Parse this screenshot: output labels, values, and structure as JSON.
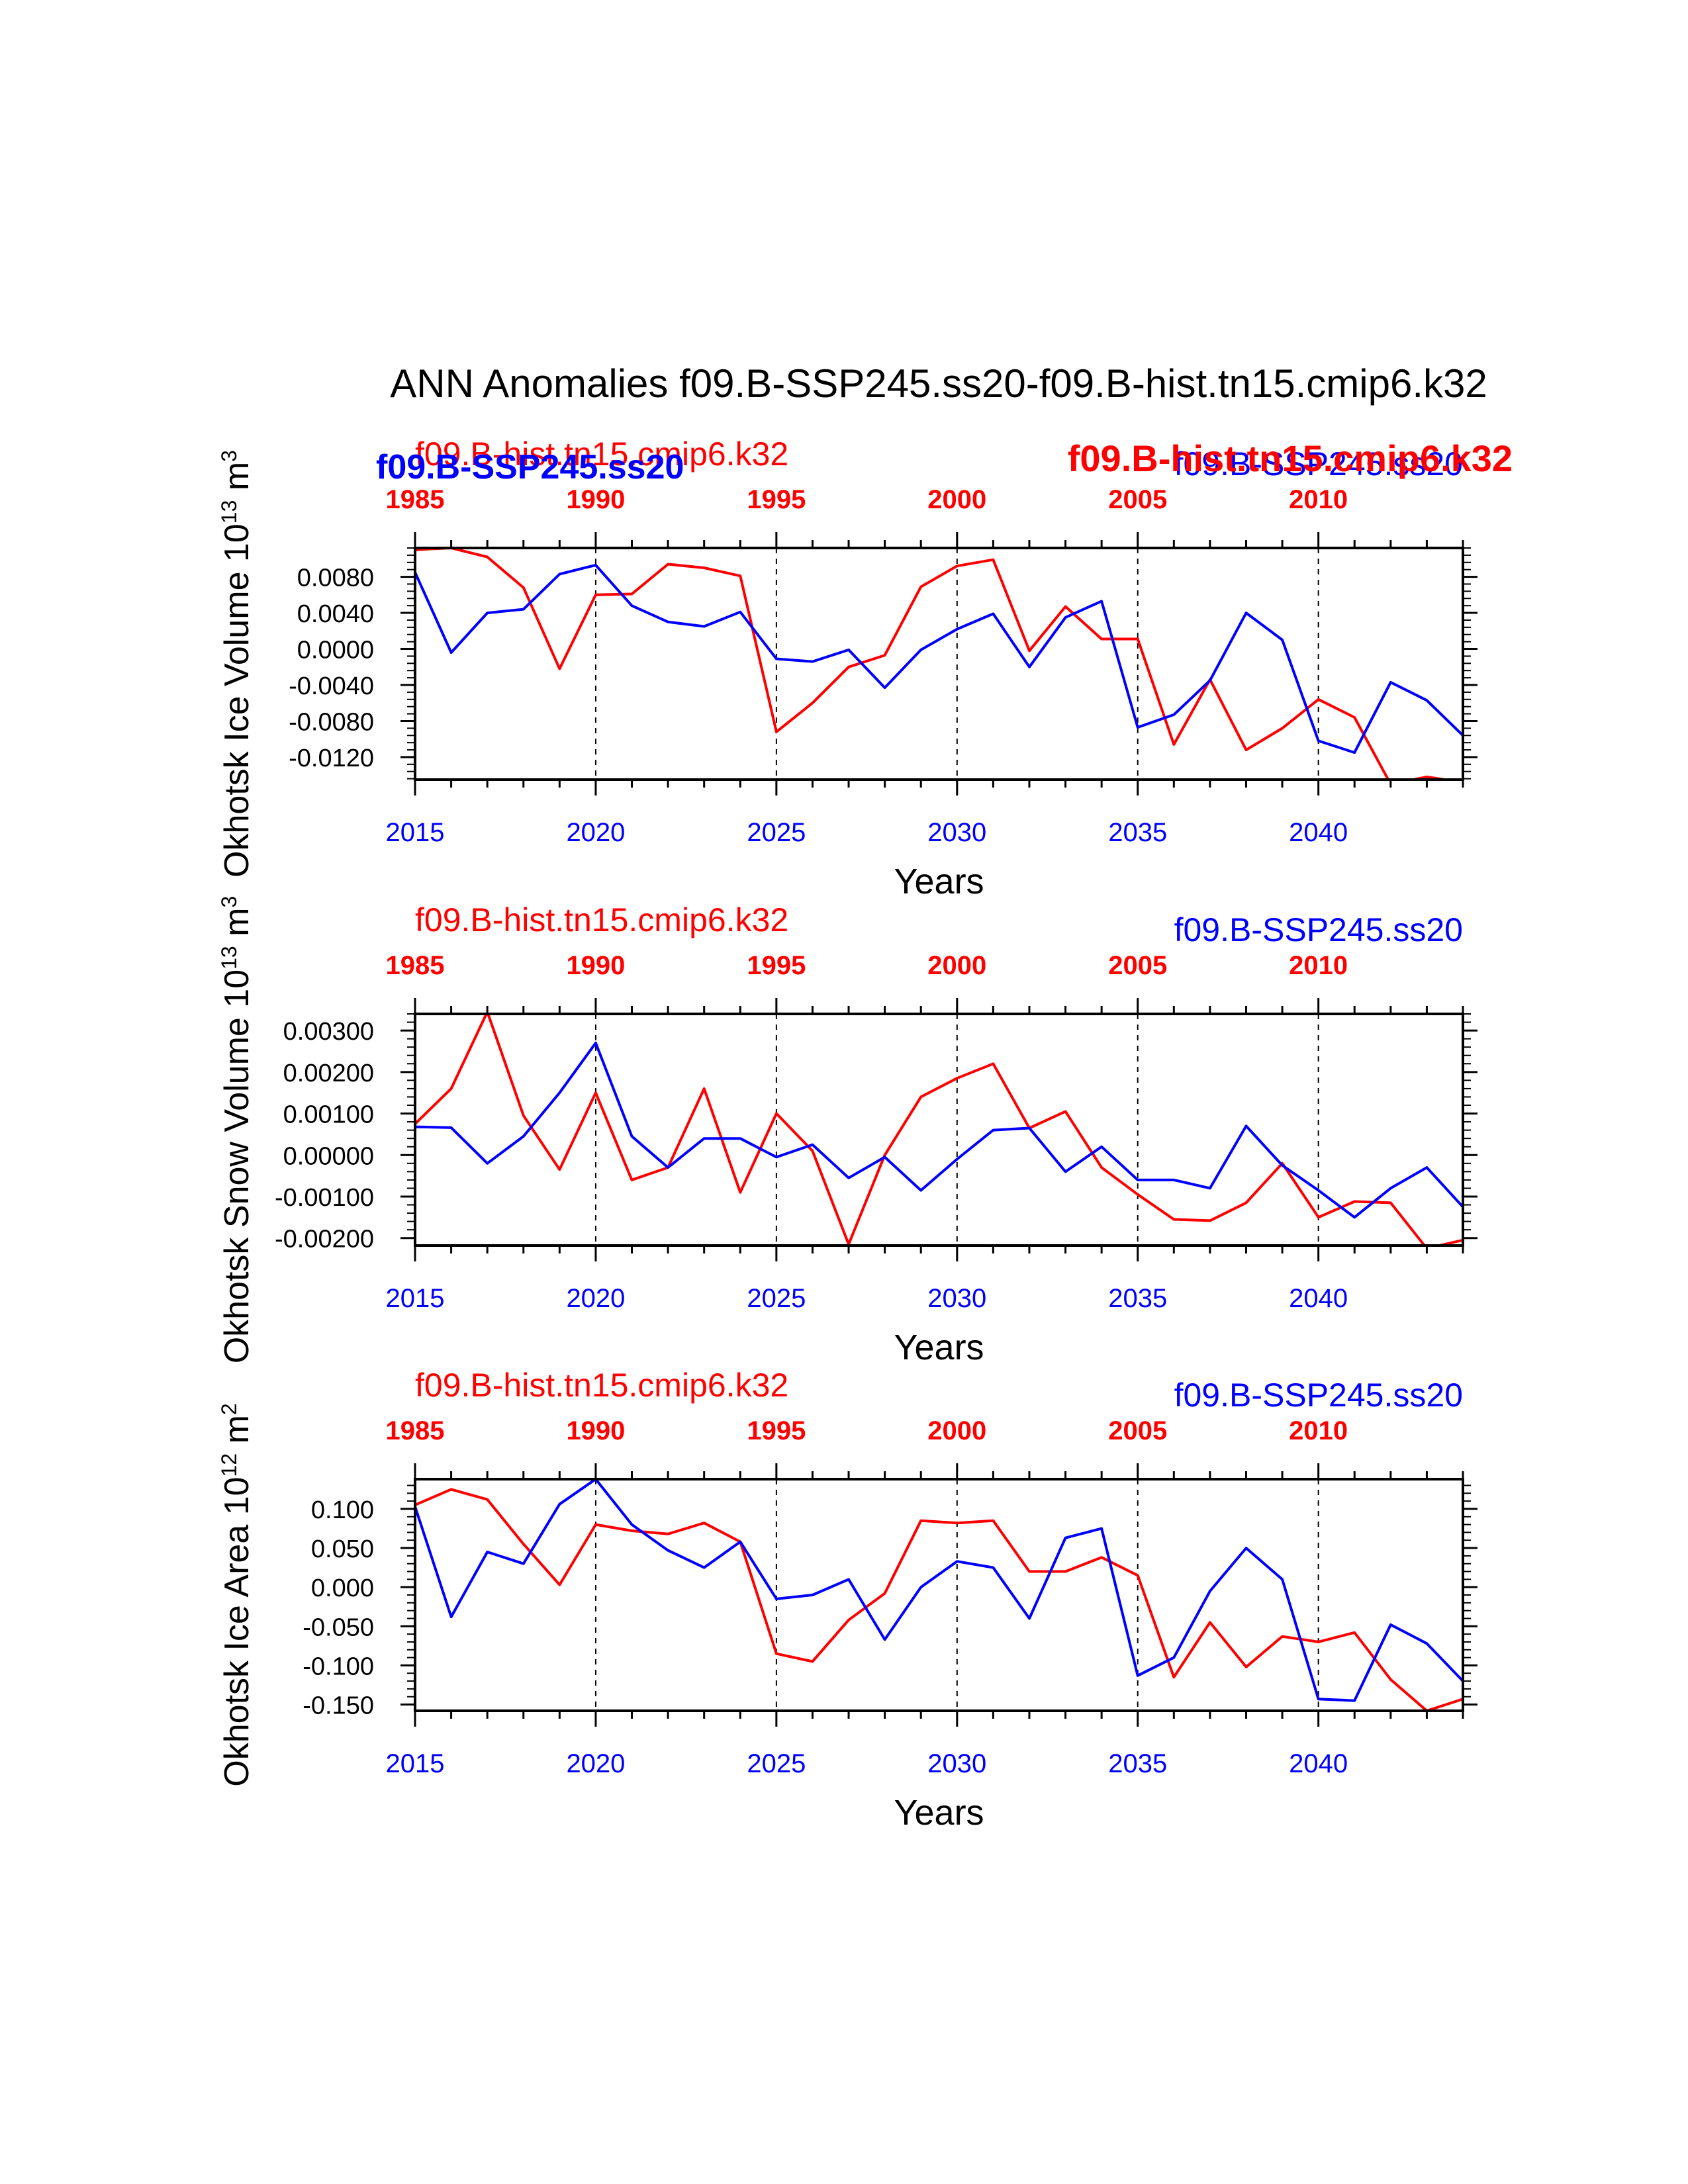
{
  "figure": {
    "title": "ANN Anomalies f09.B-SSP245.ss20-f09.B-hist.tn15.cmip6.k32",
    "colors": {
      "hist": "#ff0000",
      "ssp": "#0000ff",
      "axis": "#000000"
    },
    "overlay_labels": {
      "hist_bold": "f09.B-hist.tn15.cmip6.k32",
      "ssp_bold": "f09.B-SSP245.ss20"
    }
  },
  "chart_data": [
    {
      "type": "line",
      "ylabel": "Okhotsk Ice Volume 10",
      "ylabel_exp": "13",
      "ylabel_unit": "m",
      "ylabel_unit_exp": "3",
      "xlabel": "Years",
      "x_bottom": [
        2015,
        2016,
        2017,
        2018,
        2019,
        2020,
        2021,
        2022,
        2023,
        2024,
        2025,
        2026,
        2027,
        2028,
        2029,
        2030,
        2031,
        2032,
        2033,
        2034,
        2035,
        2036,
        2037,
        2038,
        2039,
        2040,
        2041,
        2042,
        2043,
        2044
      ],
      "x_bottom_ticks": [
        "2015",
        "2020",
        "2025",
        "2030",
        "2035",
        "2040"
      ],
      "x_top_ticks": [
        "1985",
        "1990",
        "1995",
        "2000",
        "2005",
        "2010"
      ],
      "ylim": [
        -0.0145,
        0.0112
      ],
      "y_ticks": [
        0.008,
        0.004,
        0.0,
        -0.004,
        -0.008,
        -0.012
      ],
      "y_tick_labels": [
        "0.0080",
        "0.0040",
        "0.0000",
        "-0.0040",
        "-0.0080",
        "-0.0120"
      ],
      "legend": {
        "top_left": "f09.B-hist.tn15.cmip6.k32",
        "top_right": "f09.B-SSP245.ss20"
      },
      "series": [
        {
          "name": "f09.B-hist.tn15.cmip6.k32",
          "color": "#ff0000",
          "values": [
            0.011,
            0.0112,
            0.0102,
            0.0068,
            -0.0022,
            0.006,
            0.0061,
            0.0094,
            0.009,
            0.0081,
            -0.0092,
            -0.006,
            -0.002,
            -0.0007,
            0.0069,
            0.0092,
            0.0099,
            -0.0002,
            0.0047,
            0.0011,
            0.0011,
            -0.0106,
            -0.0034,
            -0.0112,
            -0.0088,
            -0.0056,
            -0.0076,
            -0.015,
            -0.0142,
            -0.0148
          ]
        },
        {
          "name": "f09.B-SSP245.ss20",
          "color": "#0000ff",
          "values": [
            0.0085,
            -0.0004,
            0.004,
            0.0044,
            0.0083,
            0.0093,
            0.0048,
            0.003,
            0.0025,
            0.0041,
            -0.0011,
            -0.0014,
            -0.0001,
            -0.0043,
            -0.0001,
            0.0022,
            0.0039,
            -0.002,
            0.0035,
            0.0053,
            -0.0087,
            -0.0073,
            -0.0035,
            0.004,
            0.001,
            -0.0102,
            -0.0115,
            -0.0037,
            -0.0057,
            -0.0096
          ]
        }
      ]
    },
    {
      "type": "line",
      "ylabel": "Okhotsk Snow Volume 10",
      "ylabel_exp": "13",
      "ylabel_unit": "m",
      "ylabel_unit_exp": "3",
      "xlabel": "Years",
      "x_bottom": [
        2015,
        2016,
        2017,
        2018,
        2019,
        2020,
        2021,
        2022,
        2023,
        2024,
        2025,
        2026,
        2027,
        2028,
        2029,
        2030,
        2031,
        2032,
        2033,
        2034,
        2035,
        2036,
        2037,
        2038,
        2039,
        2040,
        2041,
        2042,
        2043,
        2044
      ],
      "x_bottom_ticks": [
        "2015",
        "2020",
        "2025",
        "2030",
        "2035",
        "2040"
      ],
      "x_top_ticks": [
        "1985",
        "1990",
        "1995",
        "2000",
        "2005",
        "2010"
      ],
      "ylim": [
        -0.00218,
        0.0034
      ],
      "y_ticks": [
        0.003,
        0.002,
        0.001,
        0.0,
        -0.001,
        -0.002
      ],
      "y_tick_labels": [
        "0.00300",
        "0.00200",
        "0.00100",
        "0.00000",
        "-0.00100",
        "-0.00200"
      ],
      "legend": {
        "top_left": "f09.B-hist.tn15.cmip6.k32",
        "top_right": "f09.B-SSP245.ss20"
      },
      "series": [
        {
          "name": "f09.B-hist.tn15.cmip6.k32",
          "color": "#ff0000",
          "values": [
            0.00075,
            0.0016,
            0.00345,
            0.00095,
            -0.00035,
            0.0015,
            -0.0006,
            -0.0003,
            0.0016,
            -0.0009,
            0.001,
            0.0001,
            -0.00215,
            0.0,
            0.0014,
            0.00185,
            0.0022,
            0.00065,
            0.00105,
            -0.0003,
            -0.00095,
            -0.00155,
            -0.00158,
            -0.00115,
            -0.0002,
            -0.0015,
            -0.00112,
            -0.00115,
            -0.00225,
            -0.00205
          ]
        },
        {
          "name": "f09.B-SSP245.ss20",
          "color": "#0000ff",
          "values": [
            0.00068,
            0.00066,
            -0.0002,
            0.00045,
            0.0015,
            0.0027,
            0.00045,
            -0.0003,
            0.0004,
            0.0004,
            -5e-05,
            0.00025,
            -0.00055,
            -5e-05,
            -0.00085,
            -0.0001,
            0.0006,
            0.00065,
            -0.0004,
            0.0002,
            -0.0006,
            -0.0006,
            -0.0008,
            0.0007,
            -0.00025,
            -0.00085,
            -0.0015,
            -0.0008,
            -0.0003,
            -0.00125
          ]
        }
      ]
    },
    {
      "type": "line",
      "ylabel": "Okhotsk Ice Area 10",
      "ylabel_exp": "12",
      "ylabel_unit": "m",
      "ylabel_unit_exp": "2",
      "xlabel": "Years",
      "x_bottom": [
        2015,
        2016,
        2017,
        2018,
        2019,
        2020,
        2021,
        2022,
        2023,
        2024,
        2025,
        2026,
        2027,
        2028,
        2029,
        2030,
        2031,
        2032,
        2033,
        2034,
        2035,
        2036,
        2037,
        2038,
        2039,
        2040,
        2041,
        2042,
        2043,
        2044
      ],
      "x_bottom_ticks": [
        "2015",
        "2020",
        "2025",
        "2030",
        "2035",
        "2040"
      ],
      "x_top_ticks": [
        "1985",
        "1990",
        "1995",
        "2000",
        "2005",
        "2010"
      ],
      "ylim": [
        -0.158,
        0.138
      ],
      "y_ticks": [
        0.1,
        0.05,
        0.0,
        -0.05,
        -0.1,
        -0.15
      ],
      "y_tick_labels": [
        "0.100",
        "0.050",
        "0.000",
        "-0.050",
        "-0.100",
        "-0.150"
      ],
      "legend": {
        "top_left": "f09.B-hist.tn15.cmip6.k32",
        "top_right": "f09.B-SSP245.ss20"
      },
      "series": [
        {
          "name": "f09.B-hist.tn15.cmip6.k32",
          "color": "#ff0000",
          "values": [
            0.105,
            0.125,
            0.112,
            0.055,
            0.003,
            0.08,
            0.072,
            0.068,
            0.082,
            0.058,
            -0.085,
            -0.095,
            -0.042,
            -0.008,
            0.085,
            0.082,
            0.085,
            0.02,
            0.02,
            0.038,
            0.015,
            -0.115,
            -0.045,
            -0.102,
            -0.063,
            -0.07,
            -0.058,
            -0.118,
            -0.158,
            -0.143
          ]
        },
        {
          "name": "f09.B-SSP245.ss20",
          "color": "#0000ff",
          "values": [
            0.103,
            -0.038,
            0.045,
            0.03,
            0.106,
            0.138,
            0.08,
            0.047,
            0.025,
            0.058,
            -0.015,
            -0.01,
            0.01,
            -0.067,
            0.0,
            0.033,
            0.025,
            -0.04,
            0.063,
            0.075,
            -0.113,
            -0.09,
            -0.005,
            0.05,
            0.01,
            -0.143,
            -0.145,
            -0.048,
            -0.072,
            -0.12
          ]
        }
      ]
    }
  ]
}
